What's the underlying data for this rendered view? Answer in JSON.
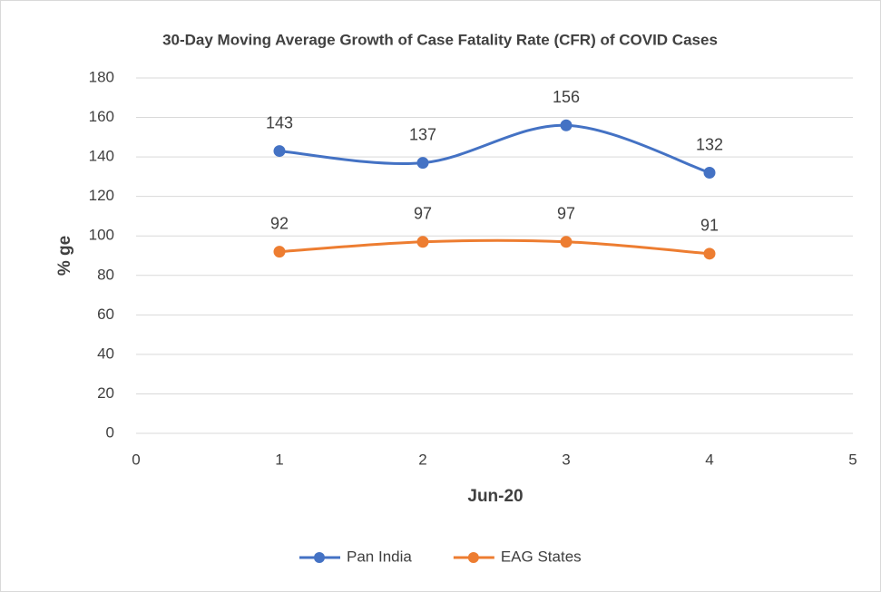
{
  "chart_data": {
    "type": "scatter",
    "title": "30-Day Moving Average Growth of Case Fatality Rate (CFR) of COVID Cases",
    "x_label": "Jun-20",
    "y_label": "% ge",
    "x": [
      1,
      2,
      3,
      4
    ],
    "series": [
      {
        "name": "Pan India",
        "color": "#4472c4",
        "values": [
          143,
          137,
          156,
          132
        ]
      },
      {
        "name": "EAG States",
        "color": "#ed7d31",
        "values": [
          92,
          97,
          97,
          91
        ]
      }
    ],
    "xlim": [
      0,
      5
    ],
    "xticks": [
      0,
      1,
      2,
      3,
      4,
      5
    ],
    "ylim": [
      0,
      180
    ],
    "yticks": [
      0,
      20,
      40,
      60,
      80,
      100,
      120,
      140,
      160,
      180
    ],
    "grid": true,
    "smooth": true,
    "legend": "bottom"
  }
}
